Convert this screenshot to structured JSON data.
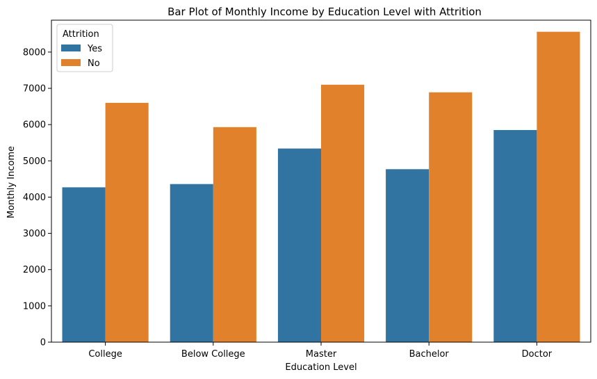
{
  "chart_data": {
    "type": "bar",
    "title": "Bar Plot of Monthly Income by Education Level with Attrition",
    "xlabel": "Education Level",
    "ylabel": "Monthly Income",
    "categories": [
      "College",
      "Below College",
      "Master",
      "Bachelor",
      "Doctor"
    ],
    "series": [
      {
        "name": "Yes",
        "color": "#3274a1",
        "values": [
          4270,
          4360,
          5340,
          4770,
          5850
        ]
      },
      {
        "name": "No",
        "color": "#e1812c",
        "values": [
          6600,
          5930,
          7100,
          6890,
          8560
        ]
      }
    ],
    "ylim": [
      0,
      8880
    ],
    "yticks": [
      0,
      1000,
      2000,
      3000,
      4000,
      5000,
      6000,
      7000,
      8000
    ],
    "legend": {
      "title": "Attrition",
      "placement": "top-left"
    },
    "grid": false
  }
}
